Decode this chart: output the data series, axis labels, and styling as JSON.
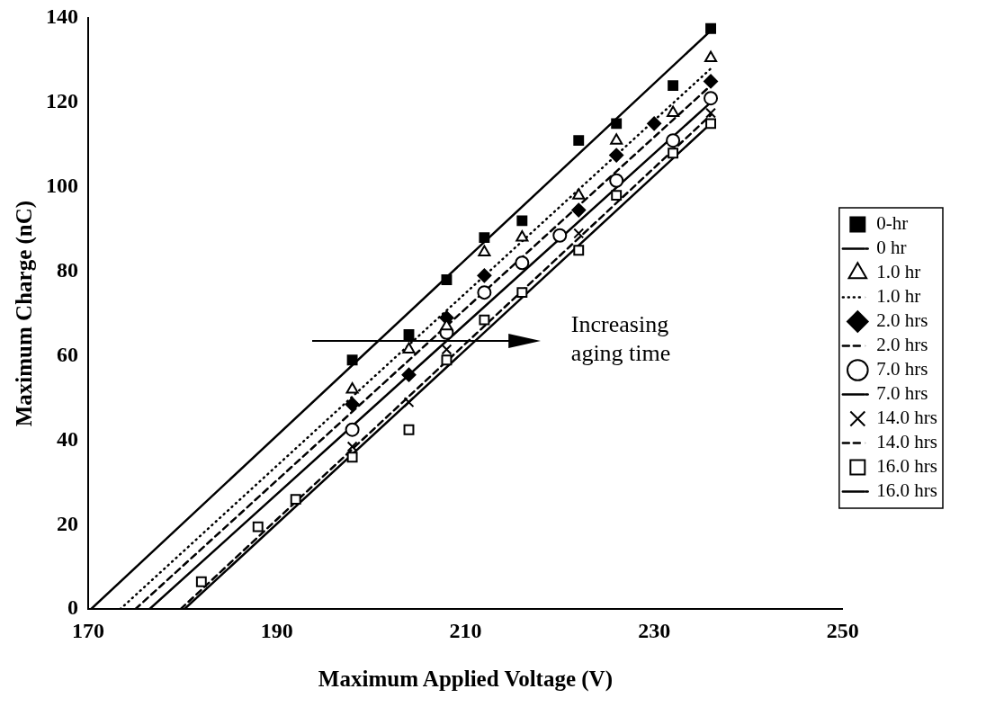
{
  "chart_data": {
    "type": "scatter",
    "xlabel": "Maximum Applied Voltage (V)",
    "ylabel": "Maximum Charge (nC)",
    "xlim": [
      170,
      250
    ],
    "xticks": [
      170,
      190,
      210,
      230,
      250
    ],
    "ylim": [
      0,
      140
    ],
    "yticks": [
      0,
      20,
      40,
      60,
      80,
      100,
      120,
      140
    ],
    "grid": false,
    "legend": "right",
    "annotations": [
      "Increasing aging time"
    ],
    "series": [
      {
        "name": "0-hr",
        "marker": "square",
        "color": "#000000",
        "x": [
          198,
          204,
          208,
          212,
          216,
          222,
          226,
          232,
          236
        ],
        "values": [
          59,
          65,
          78,
          88,
          92,
          111,
          115,
          124,
          137.5
        ]
      },
      {
        "name": "0 hr",
        "type": "line",
        "line_style": "solid",
        "color": "#000000",
        "x": [
          170.3,
          236
        ],
        "values": [
          0,
          137
        ]
      },
      {
        "name": "1.0 hr",
        "marker": "triangle",
        "color": "#000000",
        "x": [
          198,
          204,
          208,
          212,
          216,
          222,
          226,
          232,
          236
        ],
        "values": [
          52,
          61.5,
          67,
          84.5,
          88,
          98,
          111,
          117.5,
          130.5
        ]
      },
      {
        "name": "1.0 hr",
        "type": "line",
        "line_style": "dotted",
        "color": "#000000",
        "x": [
          173.4,
          236
        ],
        "values": [
          0,
          128
        ]
      },
      {
        "name": "2.0 hrs",
        "marker": "diamond",
        "color": "#000000",
        "x": [
          198,
          204,
          208,
          212,
          222,
          226,
          230,
          236
        ],
        "values": [
          48.5,
          55.5,
          69,
          79,
          94.5,
          107.5,
          115,
          125
        ]
      },
      {
        "name": "2.0 hrs",
        "type": "line",
        "line_style": "dashed",
        "color": "#000000",
        "x": [
          175,
          236
        ],
        "values": [
          0,
          124
        ]
      },
      {
        "name": "7.0 hrs",
        "marker": "circle",
        "color": "#000000",
        "x": [
          198,
          208,
          212,
          216,
          220,
          226,
          232,
          236
        ],
        "values": [
          42.5,
          65.5,
          75,
          82,
          88.5,
          101.5,
          111,
          121
        ]
      },
      {
        "name": "7.0 hrs",
        "type": "line",
        "line_style": "solid",
        "color": "#000000",
        "x": [
          176.5,
          236
        ],
        "values": [
          0,
          120
        ]
      },
      {
        "name": "14.0 hrs",
        "marker": "cross",
        "color": "#000000",
        "x": [
          198,
          204,
          208,
          222,
          236
        ],
        "values": [
          38.5,
          49,
          61.5,
          89,
          117.5
        ]
      },
      {
        "name": "14.0 hrs",
        "type": "line",
        "line_style": "dashed",
        "color": "#000000",
        "x": [
          179.8,
          236
        ],
        "values": [
          0,
          117
        ]
      },
      {
        "name": "16.0 hrs",
        "marker": "square",
        "color": "#000000",
        "x": [
          182,
          188,
          192,
          198,
          204,
          208,
          212,
          216,
          222,
          226,
          232,
          236
        ],
        "values": [
          6.5,
          19.5,
          26,
          36,
          42.5,
          59,
          68.5,
          75,
          85,
          98,
          108,
          115
        ]
      },
      {
        "name": "16.0 hrs",
        "type": "line",
        "line_style": "solid",
        "color": "#000000",
        "x": [
          180.2,
          236
        ],
        "values": [
          0,
          115
        ]
      }
    ]
  }
}
